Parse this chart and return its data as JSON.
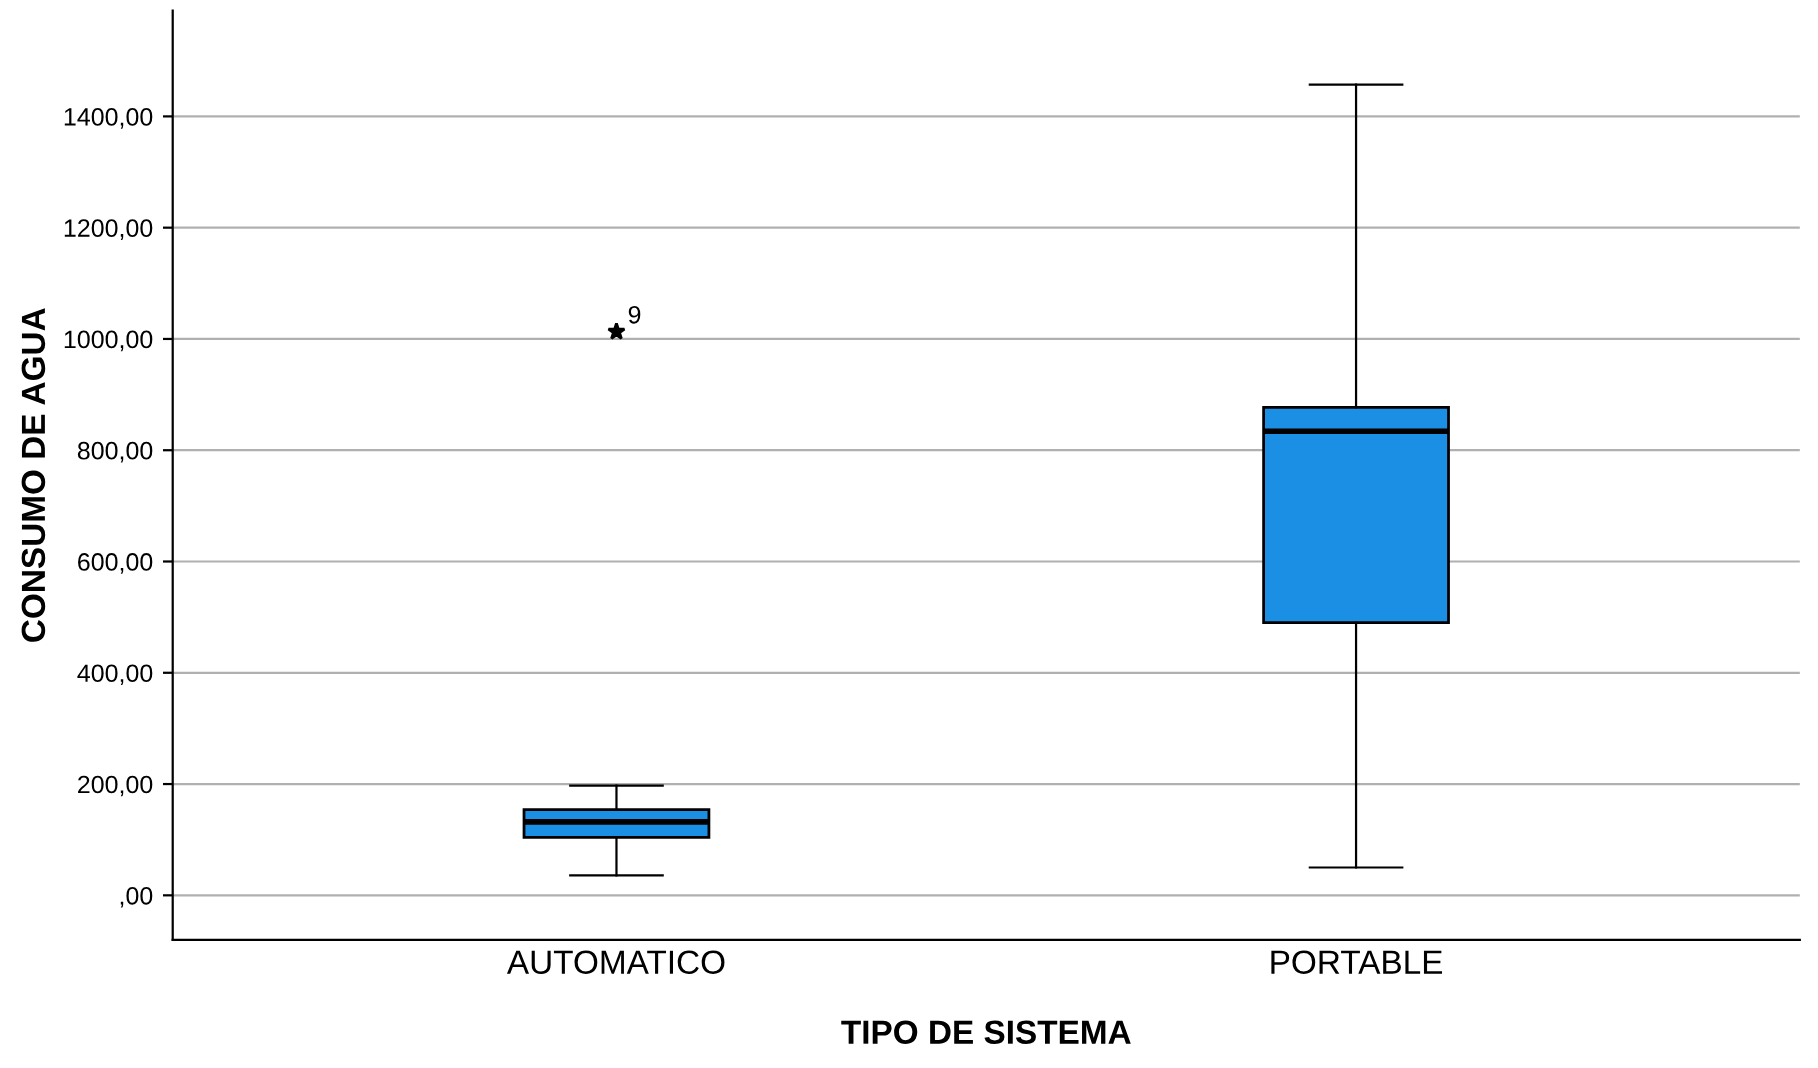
{
  "chart_data": {
    "type": "box",
    "xlabel": "TIPO DE SISTEMA",
    "ylabel": "CONSUMO DE AGUA",
    "categories": [
      "AUTOMATICO",
      "PORTABLE"
    ],
    "boxes": [
      {
        "low": 36,
        "q1": 104,
        "median": 132,
        "q3": 154,
        "high": 197,
        "outliers": [
          1013
        ]
      },
      {
        "low": 50,
        "q1": 490,
        "median": 834,
        "q3": 877,
        "high": 1457
      }
    ],
    "color": "#1a8fe3",
    "marker": "star",
    "ylim": [
      -80,
      1590
    ],
    "yticks": [
      {
        "value": 0,
        "label": ",00"
      },
      {
        "value": 200,
        "label": "200,00"
      },
      {
        "value": 400,
        "label": "400,00"
      },
      {
        "value": 600,
        "label": "600,00"
      },
      {
        "value": 800,
        "label": "800,00"
      },
      {
        "value": 1000,
        "label": "1000,00"
      },
      {
        "value": 1200,
        "label": "1200,00"
      },
      {
        "value": 1400,
        "label": "1400,00"
      }
    ],
    "grid": "y",
    "annotations": [
      "9"
    ]
  }
}
